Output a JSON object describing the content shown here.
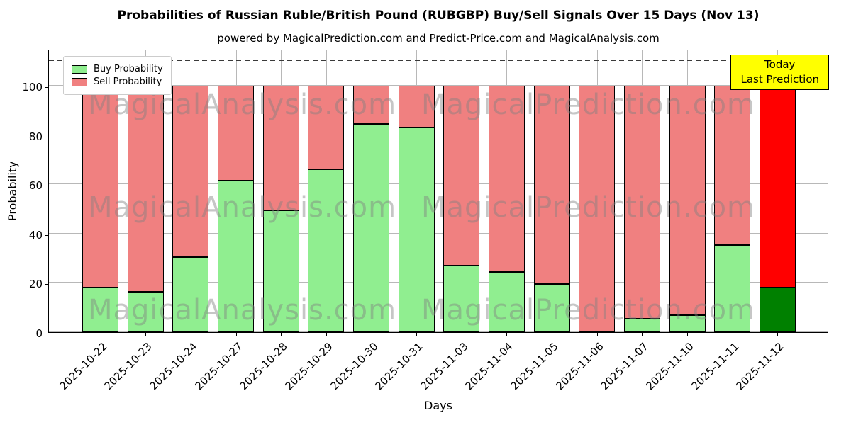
{
  "figure": {
    "title": "Probabilities of Russian Ruble/British Pound (RUBGBP) Buy/Sell Signals Over 15 Days (Nov 13)",
    "subtitle": "powered by MagicalPrediction.com and Predict-Price.com and MagicalAnalysis.com"
  },
  "annotation": {
    "line1": "Today",
    "line2": "Last Prediction"
  },
  "watermarks": {
    "left": "MagicalAnalysis.com",
    "right": "MagicalPrediction.com"
  },
  "legend": [
    {
      "label": "Buy Probability",
      "color": "#90ee90"
    },
    {
      "label": "Sell Probability",
      "color": "#f08080"
    }
  ],
  "chart_data": {
    "type": "bar",
    "stacked": true,
    "title": "Probabilities of Russian Ruble/British Pound (RUBGBP) Buy/Sell Signals Over 15 Days (Nov 13)",
    "xlabel": "Days",
    "ylabel": "Probability",
    "ylim": [
      0,
      115
    ],
    "yticks": [
      0,
      20,
      40,
      60,
      80,
      100
    ],
    "grid": true,
    "dashed_line_y": 110,
    "legend_position": "upper left",
    "categories": [
      "2025-10-22",
      "2025-10-23",
      "2025-10-24",
      "2025-10-27",
      "2025-10-28",
      "2025-10-29",
      "2025-10-30",
      "2025-10-31",
      "2025-11-03",
      "2025-11-04",
      "2025-11-05",
      "2025-11-06",
      "2025-11-07",
      "2025-11-10",
      "2025-11-11",
      "2025-11-12"
    ],
    "series": [
      {
        "name": "Buy Probability",
        "color": "#90ee90",
        "values": [
          18,
          16.5,
          30.5,
          61.5,
          49.5,
          66,
          84.5,
          83,
          27,
          24.5,
          19.5,
          0,
          5.5,
          7,
          35.5,
          18
        ]
      },
      {
        "name": "Sell Probability",
        "color": "#f08080",
        "values": [
          82,
          83.5,
          69.5,
          38.5,
          50.5,
          34,
          15.5,
          17,
          73,
          75.5,
          80.5,
          100,
          94.5,
          93,
          64.5,
          82
        ]
      }
    ],
    "last_bar_highlight": {
      "buy_color": "#008000",
      "sell_color": "#ff0000"
    }
  }
}
